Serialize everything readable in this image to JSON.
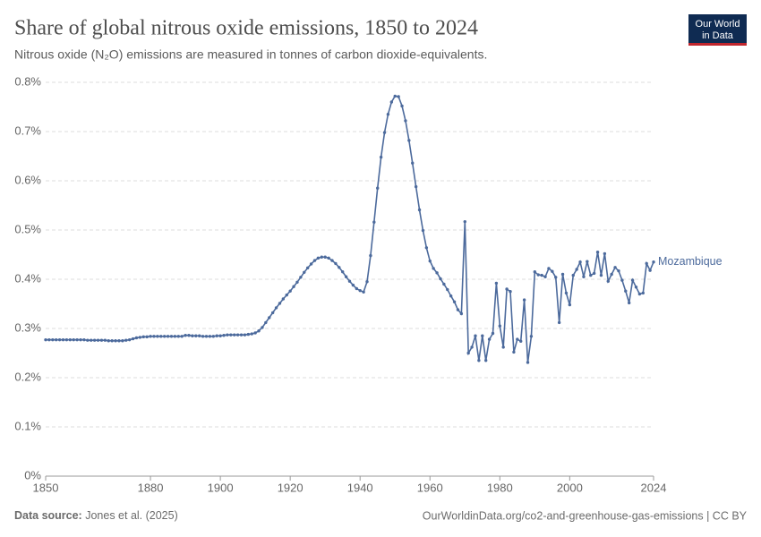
{
  "chart_data": {
    "type": "line",
    "title": "Share of global nitrous oxide emissions, 1850 to 2024",
    "subtitle": "Nitrous oxide (N₂O) emissions are measured in tonnes of carbon dioxide-equivalents.",
    "logo": [
      "Our World",
      "in Data"
    ],
    "source_label": "Data source:",
    "source": "Jones et al. (2025)",
    "footer_right": "OurWorldinData.org/co2-and-greenhouse-gas-emissions | CC BY",
    "x": [
      1850,
      1851,
      1852,
      1853,
      1854,
      1855,
      1856,
      1857,
      1858,
      1859,
      1860,
      1861,
      1862,
      1863,
      1864,
      1865,
      1866,
      1867,
      1868,
      1869,
      1870,
      1871,
      1872,
      1873,
      1874,
      1875,
      1876,
      1877,
      1878,
      1879,
      1880,
      1881,
      1882,
      1883,
      1884,
      1885,
      1886,
      1887,
      1888,
      1889,
      1890,
      1891,
      1892,
      1893,
      1894,
      1895,
      1896,
      1897,
      1898,
      1899,
      1900,
      1901,
      1902,
      1903,
      1904,
      1905,
      1906,
      1907,
      1908,
      1909,
      1910,
      1911,
      1912,
      1913,
      1914,
      1915,
      1916,
      1917,
      1918,
      1919,
      1920,
      1921,
      1922,
      1923,
      1924,
      1925,
      1926,
      1927,
      1928,
      1929,
      1930,
      1931,
      1932,
      1933,
      1934,
      1935,
      1936,
      1937,
      1938,
      1939,
      1940,
      1941,
      1942,
      1943,
      1944,
      1945,
      1946,
      1947,
      1948,
      1949,
      1950,
      1951,
      1952,
      1953,
      1954,
      1955,
      1956,
      1957,
      1958,
      1959,
      1960,
      1961,
      1962,
      1963,
      1964,
      1965,
      1966,
      1967,
      1968,
      1969,
      1970,
      1971,
      1972,
      1973,
      1974,
      1975,
      1976,
      1977,
      1978,
      1979,
      1980,
      1981,
      1982,
      1983,
      1984,
      1985,
      1986,
      1987,
      1988,
      1989,
      1990,
      1991,
      1992,
      1993,
      1994,
      1995,
      1996,
      1997,
      1998,
      1999,
      2000,
      2001,
      2002,
      2003,
      2004,
      2005,
      2006,
      2007,
      2008,
      2009,
      2010,
      2011,
      2012,
      2013,
      2014,
      2015,
      2016,
      2017,
      2018,
      2019,
      2020,
      2021,
      2022,
      2023,
      2024
    ],
    "series": [
      {
        "name": "Mozambique",
        "color": "#4c6a9c",
        "values": [
          0.277,
          0.277,
          0.277,
          0.277,
          0.277,
          0.277,
          0.277,
          0.277,
          0.277,
          0.277,
          0.277,
          0.277,
          0.276,
          0.276,
          0.276,
          0.276,
          0.276,
          0.276,
          0.275,
          0.275,
          0.275,
          0.275,
          0.275,
          0.276,
          0.277,
          0.279,
          0.281,
          0.282,
          0.283,
          0.283,
          0.284,
          0.284,
          0.284,
          0.284,
          0.284,
          0.284,
          0.284,
          0.284,
          0.284,
          0.284,
          0.286,
          0.286,
          0.285,
          0.285,
          0.285,
          0.284,
          0.284,
          0.284,
          0.284,
          0.285,
          0.285,
          0.286,
          0.287,
          0.287,
          0.287,
          0.287,
          0.287,
          0.287,
          0.288,
          0.289,
          0.291,
          0.295,
          0.302,
          0.312,
          0.322,
          0.332,
          0.342,
          0.351,
          0.36,
          0.368,
          0.376,
          0.385,
          0.394,
          0.404,
          0.414,
          0.423,
          0.431,
          0.438,
          0.443,
          0.445,
          0.445,
          0.443,
          0.438,
          0.432,
          0.424,
          0.415,
          0.405,
          0.396,
          0.388,
          0.381,
          0.377,
          0.374,
          0.395,
          0.448,
          0.516,
          0.585,
          0.648,
          0.698,
          0.735,
          0.76,
          0.772,
          0.771,
          0.752,
          0.722,
          0.682,
          0.636,
          0.588,
          0.541,
          0.499,
          0.464,
          0.437,
          0.422,
          0.413,
          0.401,
          0.39,
          0.379,
          0.366,
          0.354,
          0.338,
          0.33,
          0.517,
          0.25,
          0.262,
          0.285,
          0.235,
          0.285,
          0.235,
          0.278,
          0.29,
          0.392,
          0.305,
          0.262,
          0.38,
          0.375,
          0.252,
          0.278,
          0.274,
          0.358,
          0.231,
          0.284,
          0.415,
          0.409,
          0.408,
          0.405,
          0.422,
          0.416,
          0.404,
          0.312,
          0.41,
          0.372,
          0.348,
          0.408,
          0.42,
          0.435,
          0.405,
          0.436,
          0.408,
          0.412,
          0.455,
          0.408,
          0.452,
          0.396,
          0.41,
          0.424,
          0.417,
          0.398,
          0.376,
          0.352,
          0.398,
          0.384,
          0.37,
          0.372,
          0.432,
          0.418,
          0.435
        ]
      }
    ],
    "xlim": [
      1850,
      2024
    ],
    "xticks": [
      1850,
      1880,
      1900,
      1920,
      1940,
      1960,
      1980,
      2000,
      2024
    ],
    "ylim": [
      0,
      0.8
    ],
    "yticks": [
      {
        "value": 0,
        "label": "0%"
      },
      {
        "value": 0.1,
        "label": "0.1%"
      },
      {
        "value": 0.2,
        "label": "0.2%"
      },
      {
        "value": 0.3,
        "label": "0.3%"
      },
      {
        "value": 0.4,
        "label": "0.4%"
      },
      {
        "value": 0.5,
        "label": "0.5%"
      },
      {
        "value": 0.6,
        "label": "0.6%"
      },
      {
        "value": 0.7,
        "label": "0.7%"
      },
      {
        "value": 0.8,
        "label": "0.8%"
      }
    ],
    "grid": true
  }
}
